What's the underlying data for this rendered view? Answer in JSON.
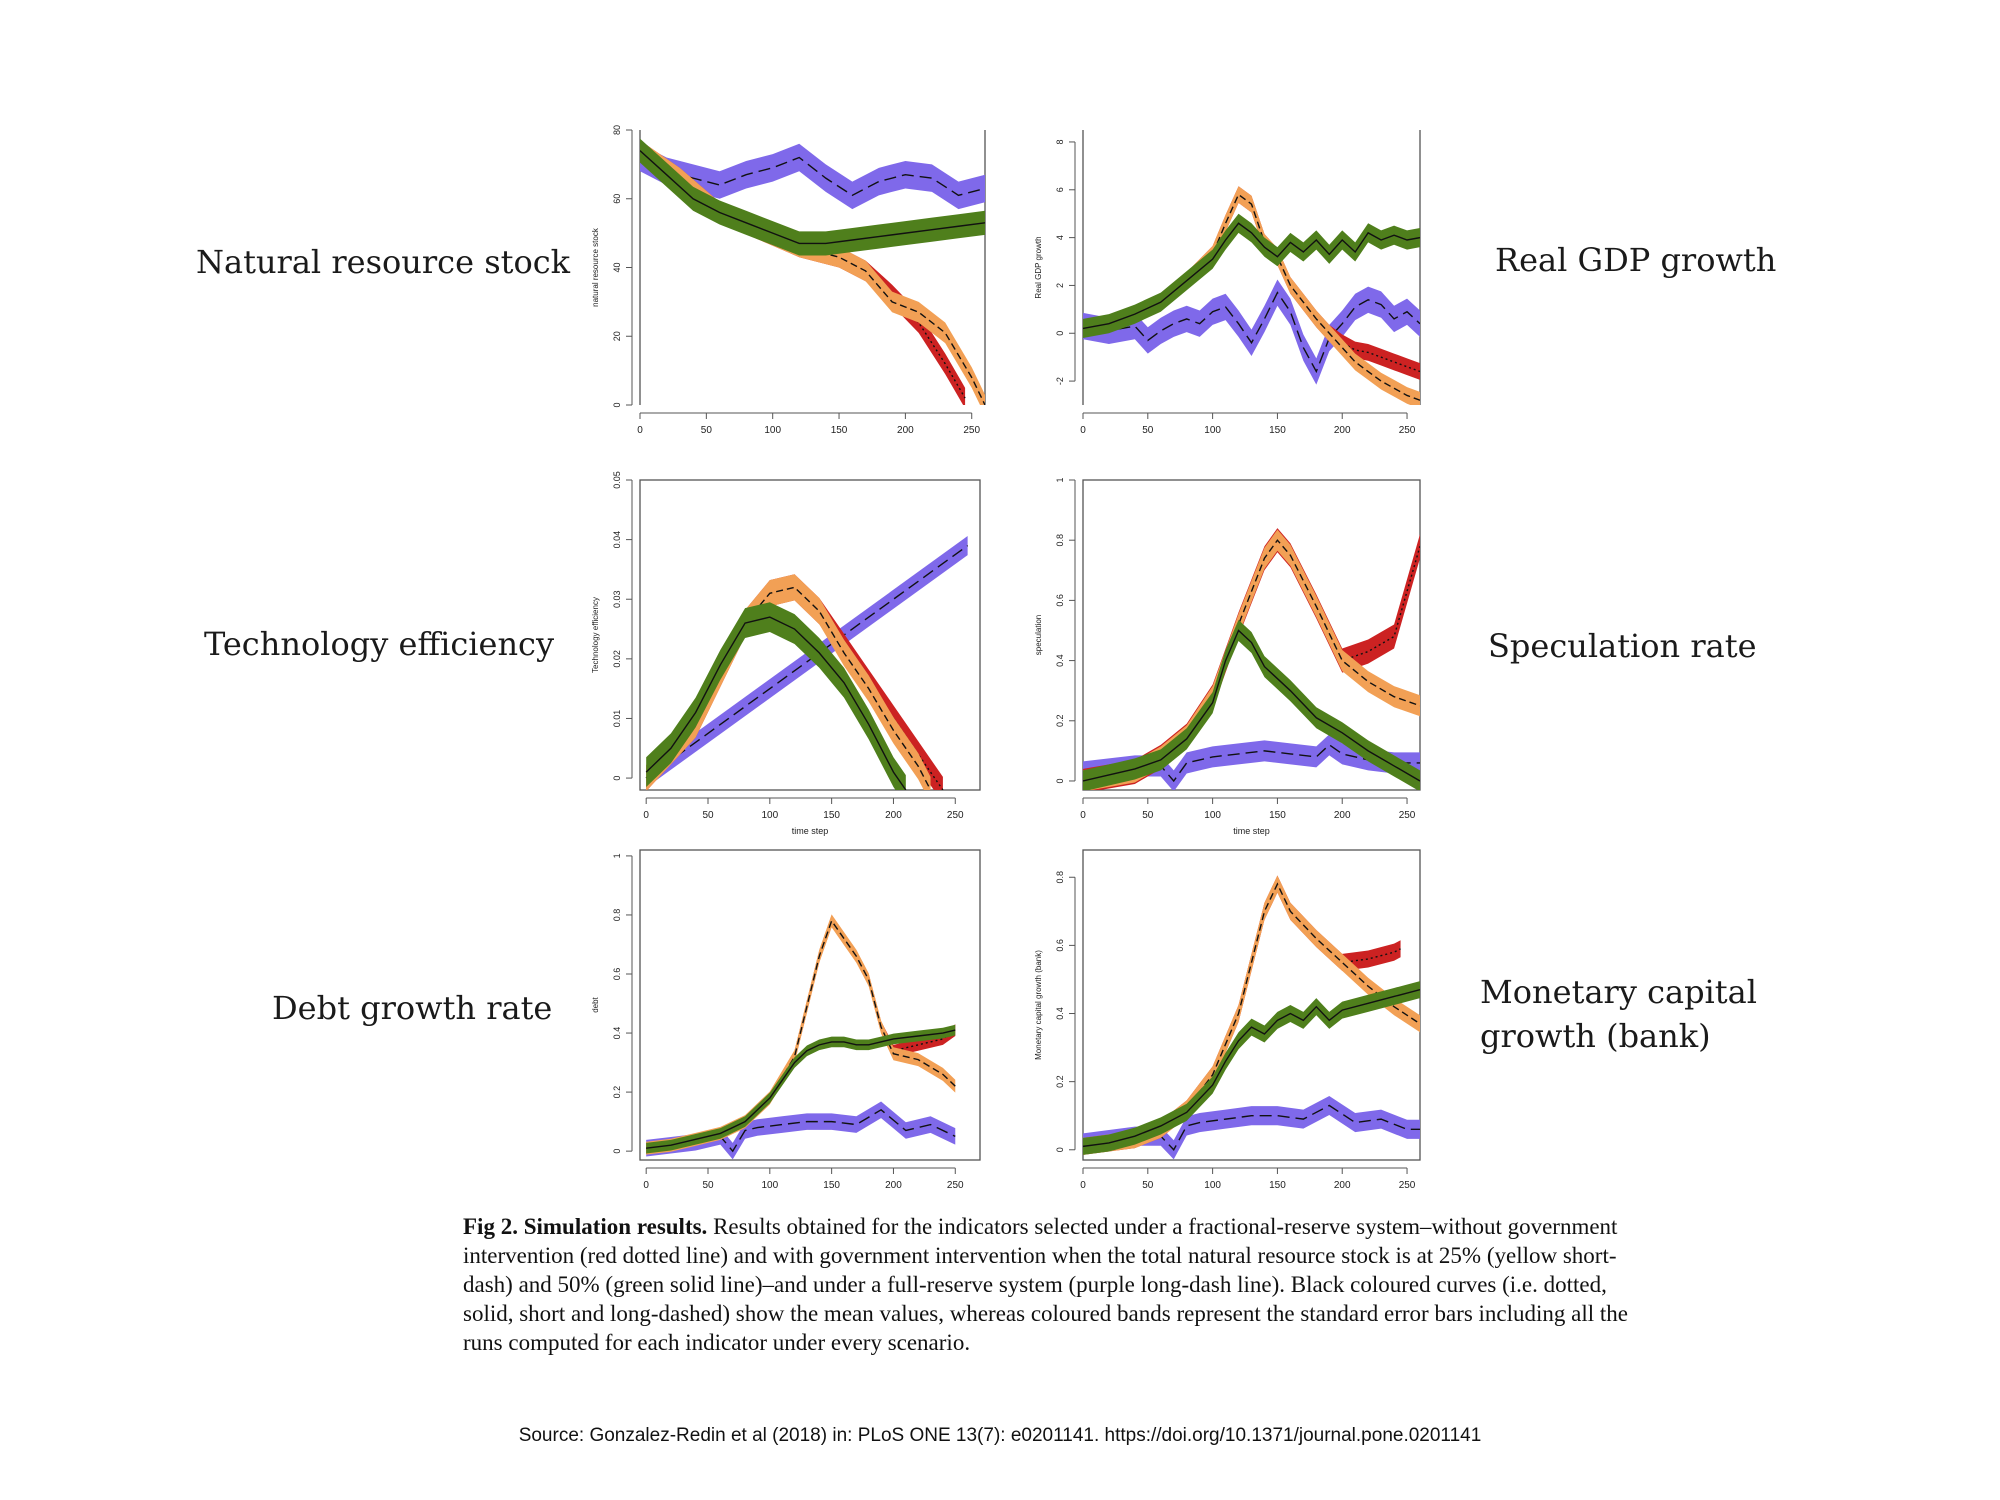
{
  "labels": {
    "nrs": "Natural resource stock",
    "gdp": "Real GDP growth",
    "tech": "Technology efficiency",
    "spec": "Speculation rate",
    "debt": "Debt growth rate",
    "money": "Monetary capital\ngrowth (bank)"
  },
  "caption": {
    "fig": "Fig 2.",
    "title": "Simulation results.",
    "text": "Results obtained for the indicators selected under a fractional-reserve system–without government intervention (red dotted line) and with government intervention when the total natural resource stock is at 25% (yellow short-dash) and 50% (green solid line)–and under a full-reserve system (purple long-dash line). Black coloured curves (i.e. dotted, solid, short and long-dashed) show the mean values, whereas coloured bands represent the standard error bars including all the runs computed for each indicator under every scenario."
  },
  "source": "Source: Gonzalez-Redin et al (2018) in: PLoS ONE 13(7): e0201141. https://doi.org/10.1371/journal.pone.0201141",
  "colors": {
    "red": "#cc2222",
    "orange": "#f2a055",
    "green": "#4f7f1c",
    "purple": "#7f69ea"
  },
  "chart_data": [
    {
      "id": "nrs",
      "type": "line",
      "ylabel": "natural resource stock",
      "xlabel": "",
      "xlim": [
        0,
        260
      ],
      "ylim": [
        0,
        80
      ],
      "xticks": [
        0,
        50,
        100,
        150,
        200,
        250
      ],
      "yticks": [
        0,
        20,
        40,
        60,
        80
      ],
      "series": [
        {
          "name": "purple",
          "x": [
            0,
            20,
            40,
            60,
            80,
            100,
            120,
            140,
            160,
            180,
            200,
            220,
            240,
            260
          ],
          "y": [
            72,
            68,
            66,
            64,
            67,
            69,
            72,
            66,
            61,
            65,
            67,
            66,
            61,
            63
          ],
          "band": 4
        },
        {
          "name": "red",
          "x": [
            0,
            30,
            60,
            90,
            120,
            150,
            170,
            190,
            210,
            230,
            245
          ],
          "y": [
            74,
            66,
            56,
            51,
            46,
            43,
            39,
            32,
            24,
            12,
            2
          ],
          "band": 3
        },
        {
          "name": "orange",
          "x": [
            0,
            30,
            60,
            90,
            120,
            150,
            170,
            190,
            210,
            230,
            250,
            260
          ],
          "y": [
            74,
            66,
            56,
            51,
            46,
            43,
            39,
            30,
            27,
            21,
            8,
            0
          ],
          "band": 3
        },
        {
          "name": "green",
          "x": [
            0,
            20,
            40,
            60,
            80,
            100,
            120,
            140,
            160,
            180,
            200,
            220,
            240,
            260
          ],
          "y": [
            74,
            67,
            60,
            56,
            53,
            50,
            47,
            47,
            48,
            49,
            50,
            51,
            52,
            53
          ],
          "band": 3.5
        }
      ]
    },
    {
      "id": "gdp",
      "type": "line",
      "ylabel": "Real GDP growth",
      "xlabel": "",
      "xlim": [
        0,
        260
      ],
      "ylim": [
        -3,
        8.5
      ],
      "xticks": [
        0,
        50,
        100,
        150,
        200,
        250
      ],
      "yticks": [
        -2,
        0,
        2,
        4,
        6,
        8
      ],
      "series": [
        {
          "name": "purple",
          "x": [
            0,
            20,
            40,
            50,
            60,
            70,
            80,
            90,
            100,
            110,
            120,
            130,
            140,
            150,
            160,
            170,
            180,
            190,
            200,
            210,
            220,
            230,
            240,
            250,
            260
          ],
          "y": [
            0.3,
            0.1,
            0.3,
            -0.3,
            0.1,
            0.4,
            0.6,
            0.4,
            0.9,
            1.1,
            0.4,
            -0.4,
            0.6,
            1.7,
            0.9,
            -0.6,
            -1.6,
            -0.2,
            0.4,
            1.1,
            1.4,
            1.2,
            0.6,
            0.9,
            0.4
          ],
          "band": 0.55
        },
        {
          "name": "red",
          "x": [
            0,
            20,
            40,
            60,
            80,
            100,
            110,
            120,
            130,
            140,
            150,
            160,
            170,
            180,
            190,
            200,
            210,
            220,
            230,
            240,
            250,
            260
          ],
          "y": [
            0.2,
            0.4,
            0.8,
            1.3,
            2.2,
            3.3,
            4.6,
            5.8,
            5.4,
            3.8,
            3.2,
            2.0,
            1.3,
            0.6,
            0.0,
            -0.4,
            -0.7,
            -0.8,
            -1.0,
            -1.2,
            -1.4,
            -1.6
          ],
          "band": 0.35
        },
        {
          "name": "orange",
          "x": [
            0,
            20,
            40,
            60,
            80,
            100,
            110,
            120,
            130,
            140,
            150,
            160,
            170,
            180,
            190,
            200,
            210,
            220,
            230,
            240,
            250,
            260
          ],
          "y": [
            0.2,
            0.4,
            0.8,
            1.3,
            2.2,
            3.3,
            4.6,
            5.8,
            5.4,
            3.8,
            3.2,
            2.0,
            1.3,
            0.6,
            0.0,
            -0.6,
            -1.2,
            -1.6,
            -2.0,
            -2.3,
            -2.6,
            -2.8
          ],
          "band": 0.35
        },
        {
          "name": "green",
          "x": [
            0,
            20,
            40,
            60,
            80,
            100,
            110,
            120,
            130,
            140,
            150,
            160,
            170,
            180,
            190,
            200,
            210,
            220,
            230,
            240,
            250,
            260
          ],
          "y": [
            0.2,
            0.4,
            0.8,
            1.3,
            2.2,
            3.1,
            3.9,
            4.6,
            4.2,
            3.6,
            3.2,
            3.8,
            3.4,
            3.9,
            3.3,
            3.9,
            3.4,
            4.2,
            3.9,
            4.1,
            3.9,
            4.0
          ],
          "band": 0.4
        }
      ]
    },
    {
      "id": "tech",
      "type": "line",
      "ylabel": "Technology efficiency",
      "xlabel": "time step",
      "xlim": [
        -5,
        270
      ],
      "ylim": [
        -0.002,
        0.05
      ],
      "xticks": [
        0,
        50,
        100,
        150,
        200,
        250
      ],
      "yticks": [
        0,
        0.01,
        0.02,
        0.03,
        0.04,
        0.05
      ],
      "series": [
        {
          "name": "purple",
          "x": [
            0,
            260
          ],
          "y": [
            0.0,
            0.039
          ],
          "band": 0.0016
        },
        {
          "name": "red",
          "x": [
            0,
            40,
            80,
            100,
            120,
            140,
            160,
            180,
            200,
            220,
            240
          ],
          "y": [
            0.0,
            0.009,
            0.026,
            0.031,
            0.032,
            0.028,
            0.022,
            0.016,
            0.01,
            0.004,
            -0.002
          ],
          "band": 0.0022
        },
        {
          "name": "orange",
          "x": [
            0,
            40,
            80,
            100,
            120,
            140,
            160,
            180,
            200,
            220,
            230
          ],
          "y": [
            0.0,
            0.009,
            0.026,
            0.031,
            0.032,
            0.028,
            0.021,
            0.015,
            0.008,
            0.002,
            -0.002
          ],
          "band": 0.0022
        },
        {
          "name": "green",
          "x": [
            0,
            20,
            40,
            60,
            80,
            100,
            120,
            140,
            160,
            180,
            200,
            210
          ],
          "y": [
            0.001,
            0.005,
            0.011,
            0.019,
            0.026,
            0.027,
            0.025,
            0.021,
            0.016,
            0.009,
            0.001,
            -0.002
          ],
          "band": 0.0025
        }
      ]
    },
    {
      "id": "spec",
      "type": "line",
      "ylabel": "speculation",
      "xlabel": "time step",
      "xlim": [
        0,
        260
      ],
      "ylim": [
        -0.03,
        1.0
      ],
      "xticks": [
        0,
        50,
        100,
        150,
        200,
        250
      ],
      "yticks": [
        0,
        0.2,
        0.4,
        0.6,
        0.8,
        1.0
      ],
      "series": [
        {
          "name": "purple",
          "x": [
            0,
            20,
            40,
            60,
            70,
            80,
            90,
            100,
            120,
            140,
            160,
            180,
            190,
            200,
            220,
            240,
            260
          ],
          "y": [
            0.03,
            0.04,
            0.05,
            0.05,
            0.0,
            0.06,
            0.07,
            0.08,
            0.09,
            0.1,
            0.09,
            0.08,
            0.12,
            0.09,
            0.07,
            0.06,
            0.06
          ],
          "band": 0.035
        },
        {
          "name": "red",
          "x": [
            0,
            40,
            60,
            80,
            100,
            120,
            140,
            150,
            160,
            180,
            200,
            220,
            240,
            260
          ],
          "y": [
            0.0,
            0.03,
            0.08,
            0.15,
            0.28,
            0.52,
            0.74,
            0.8,
            0.75,
            0.58,
            0.4,
            0.43,
            0.48,
            0.78
          ],
          "band": 0.04
        },
        {
          "name": "orange",
          "x": [
            0,
            40,
            60,
            80,
            100,
            120,
            140,
            150,
            160,
            180,
            200,
            220,
            240,
            260
          ],
          "y": [
            0.0,
            0.03,
            0.08,
            0.15,
            0.28,
            0.52,
            0.74,
            0.8,
            0.75,
            0.58,
            0.4,
            0.33,
            0.28,
            0.25
          ],
          "band": 0.035
        },
        {
          "name": "green",
          "x": [
            0,
            20,
            40,
            60,
            80,
            100,
            110,
            120,
            130,
            140,
            160,
            180,
            200,
            220,
            240,
            260
          ],
          "y": [
            0.0,
            0.02,
            0.04,
            0.07,
            0.14,
            0.26,
            0.4,
            0.5,
            0.46,
            0.38,
            0.3,
            0.21,
            0.16,
            0.1,
            0.05,
            0.0
          ],
          "band": 0.035
        }
      ]
    },
    {
      "id": "debt",
      "type": "line",
      "ylabel": "debt",
      "xlabel": "",
      "xlim": [
        -5,
        270
      ],
      "ylim": [
        -0.03,
        1.02
      ],
      "xticks": [
        0,
        50,
        100,
        150,
        200,
        250
      ],
      "yticks": [
        0,
        0.2,
        0.4,
        0.6,
        0.8,
        1.0
      ],
      "series": [
        {
          "name": "purple",
          "x": [
            0,
            20,
            40,
            60,
            70,
            80,
            90,
            110,
            130,
            150,
            170,
            190,
            210,
            230,
            250
          ],
          "y": [
            0.01,
            0.02,
            0.03,
            0.05,
            0.0,
            0.07,
            0.08,
            0.09,
            0.1,
            0.1,
            0.09,
            0.14,
            0.07,
            0.09,
            0.05
          ],
          "band": 0.028
        },
        {
          "name": "red",
          "x": [
            0,
            20,
            40,
            60,
            80,
            100,
            120,
            140,
            150,
            160,
            170,
            180,
            190,
            200,
            220,
            240,
            250
          ],
          "y": [
            0.01,
            0.02,
            0.04,
            0.06,
            0.1,
            0.18,
            0.32,
            0.66,
            0.78,
            0.72,
            0.66,
            0.58,
            0.42,
            0.34,
            0.36,
            0.38,
            0.41
          ],
          "band": 0.02
        },
        {
          "name": "orange",
          "x": [
            0,
            20,
            40,
            60,
            80,
            100,
            120,
            140,
            150,
            160,
            170,
            180,
            190,
            200,
            220,
            240,
            250
          ],
          "y": [
            0.01,
            0.02,
            0.04,
            0.06,
            0.1,
            0.18,
            0.32,
            0.66,
            0.78,
            0.72,
            0.66,
            0.58,
            0.42,
            0.33,
            0.31,
            0.26,
            0.22
          ],
          "band": 0.022
        },
        {
          "name": "green",
          "x": [
            0,
            20,
            40,
            60,
            80,
            100,
            120,
            130,
            140,
            150,
            160,
            170,
            180,
            200,
            220,
            240,
            250
          ],
          "y": [
            0.01,
            0.02,
            0.04,
            0.06,
            0.1,
            0.18,
            0.3,
            0.34,
            0.36,
            0.37,
            0.37,
            0.36,
            0.36,
            0.38,
            0.39,
            0.4,
            0.41
          ],
          "band": 0.018
        }
      ]
    },
    {
      "id": "money",
      "type": "line",
      "ylabel": "Monetary capital growth (bank)",
      "xlabel": "",
      "xlim": [
        0,
        260
      ],
      "ylim": [
        -0.03,
        0.88
      ],
      "xticks": [
        0,
        50,
        100,
        150,
        200,
        250
      ],
      "yticks": [
        0,
        0.2,
        0.4,
        0.6,
        0.8
      ],
      "series": [
        {
          "name": "purple",
          "x": [
            0,
            20,
            40,
            60,
            70,
            80,
            90,
            110,
            130,
            150,
            170,
            190,
            210,
            230,
            250,
            260
          ],
          "y": [
            0.02,
            0.03,
            0.04,
            0.04,
            0.0,
            0.07,
            0.08,
            0.09,
            0.1,
            0.1,
            0.09,
            0.13,
            0.08,
            0.09,
            0.06,
            0.06
          ],
          "band": 0.028
        },
        {
          "name": "red",
          "x": [
            0,
            40,
            60,
            80,
            100,
            120,
            140,
            150,
            160,
            180,
            200,
            220,
            240,
            245
          ],
          "y": [
            0.01,
            0.03,
            0.06,
            0.12,
            0.22,
            0.4,
            0.7,
            0.78,
            0.7,
            0.62,
            0.55,
            0.56,
            0.58,
            0.59
          ],
          "band": 0.025
        },
        {
          "name": "orange",
          "x": [
            0,
            40,
            60,
            80,
            100,
            120,
            140,
            150,
            160,
            180,
            200,
            220,
            240,
            260
          ],
          "y": [
            0.01,
            0.03,
            0.06,
            0.12,
            0.22,
            0.4,
            0.7,
            0.78,
            0.7,
            0.62,
            0.55,
            0.48,
            0.42,
            0.37
          ],
          "band": 0.025
        },
        {
          "name": "green",
          "x": [
            0,
            20,
            40,
            60,
            80,
            100,
            110,
            120,
            130,
            140,
            150,
            160,
            170,
            180,
            190,
            200,
            220,
            240,
            260
          ],
          "y": [
            0.01,
            0.02,
            0.04,
            0.07,
            0.11,
            0.19,
            0.26,
            0.32,
            0.36,
            0.34,
            0.38,
            0.4,
            0.38,
            0.42,
            0.38,
            0.41,
            0.43,
            0.45,
            0.47
          ],
          "band": 0.025
        }
      ]
    }
  ]
}
